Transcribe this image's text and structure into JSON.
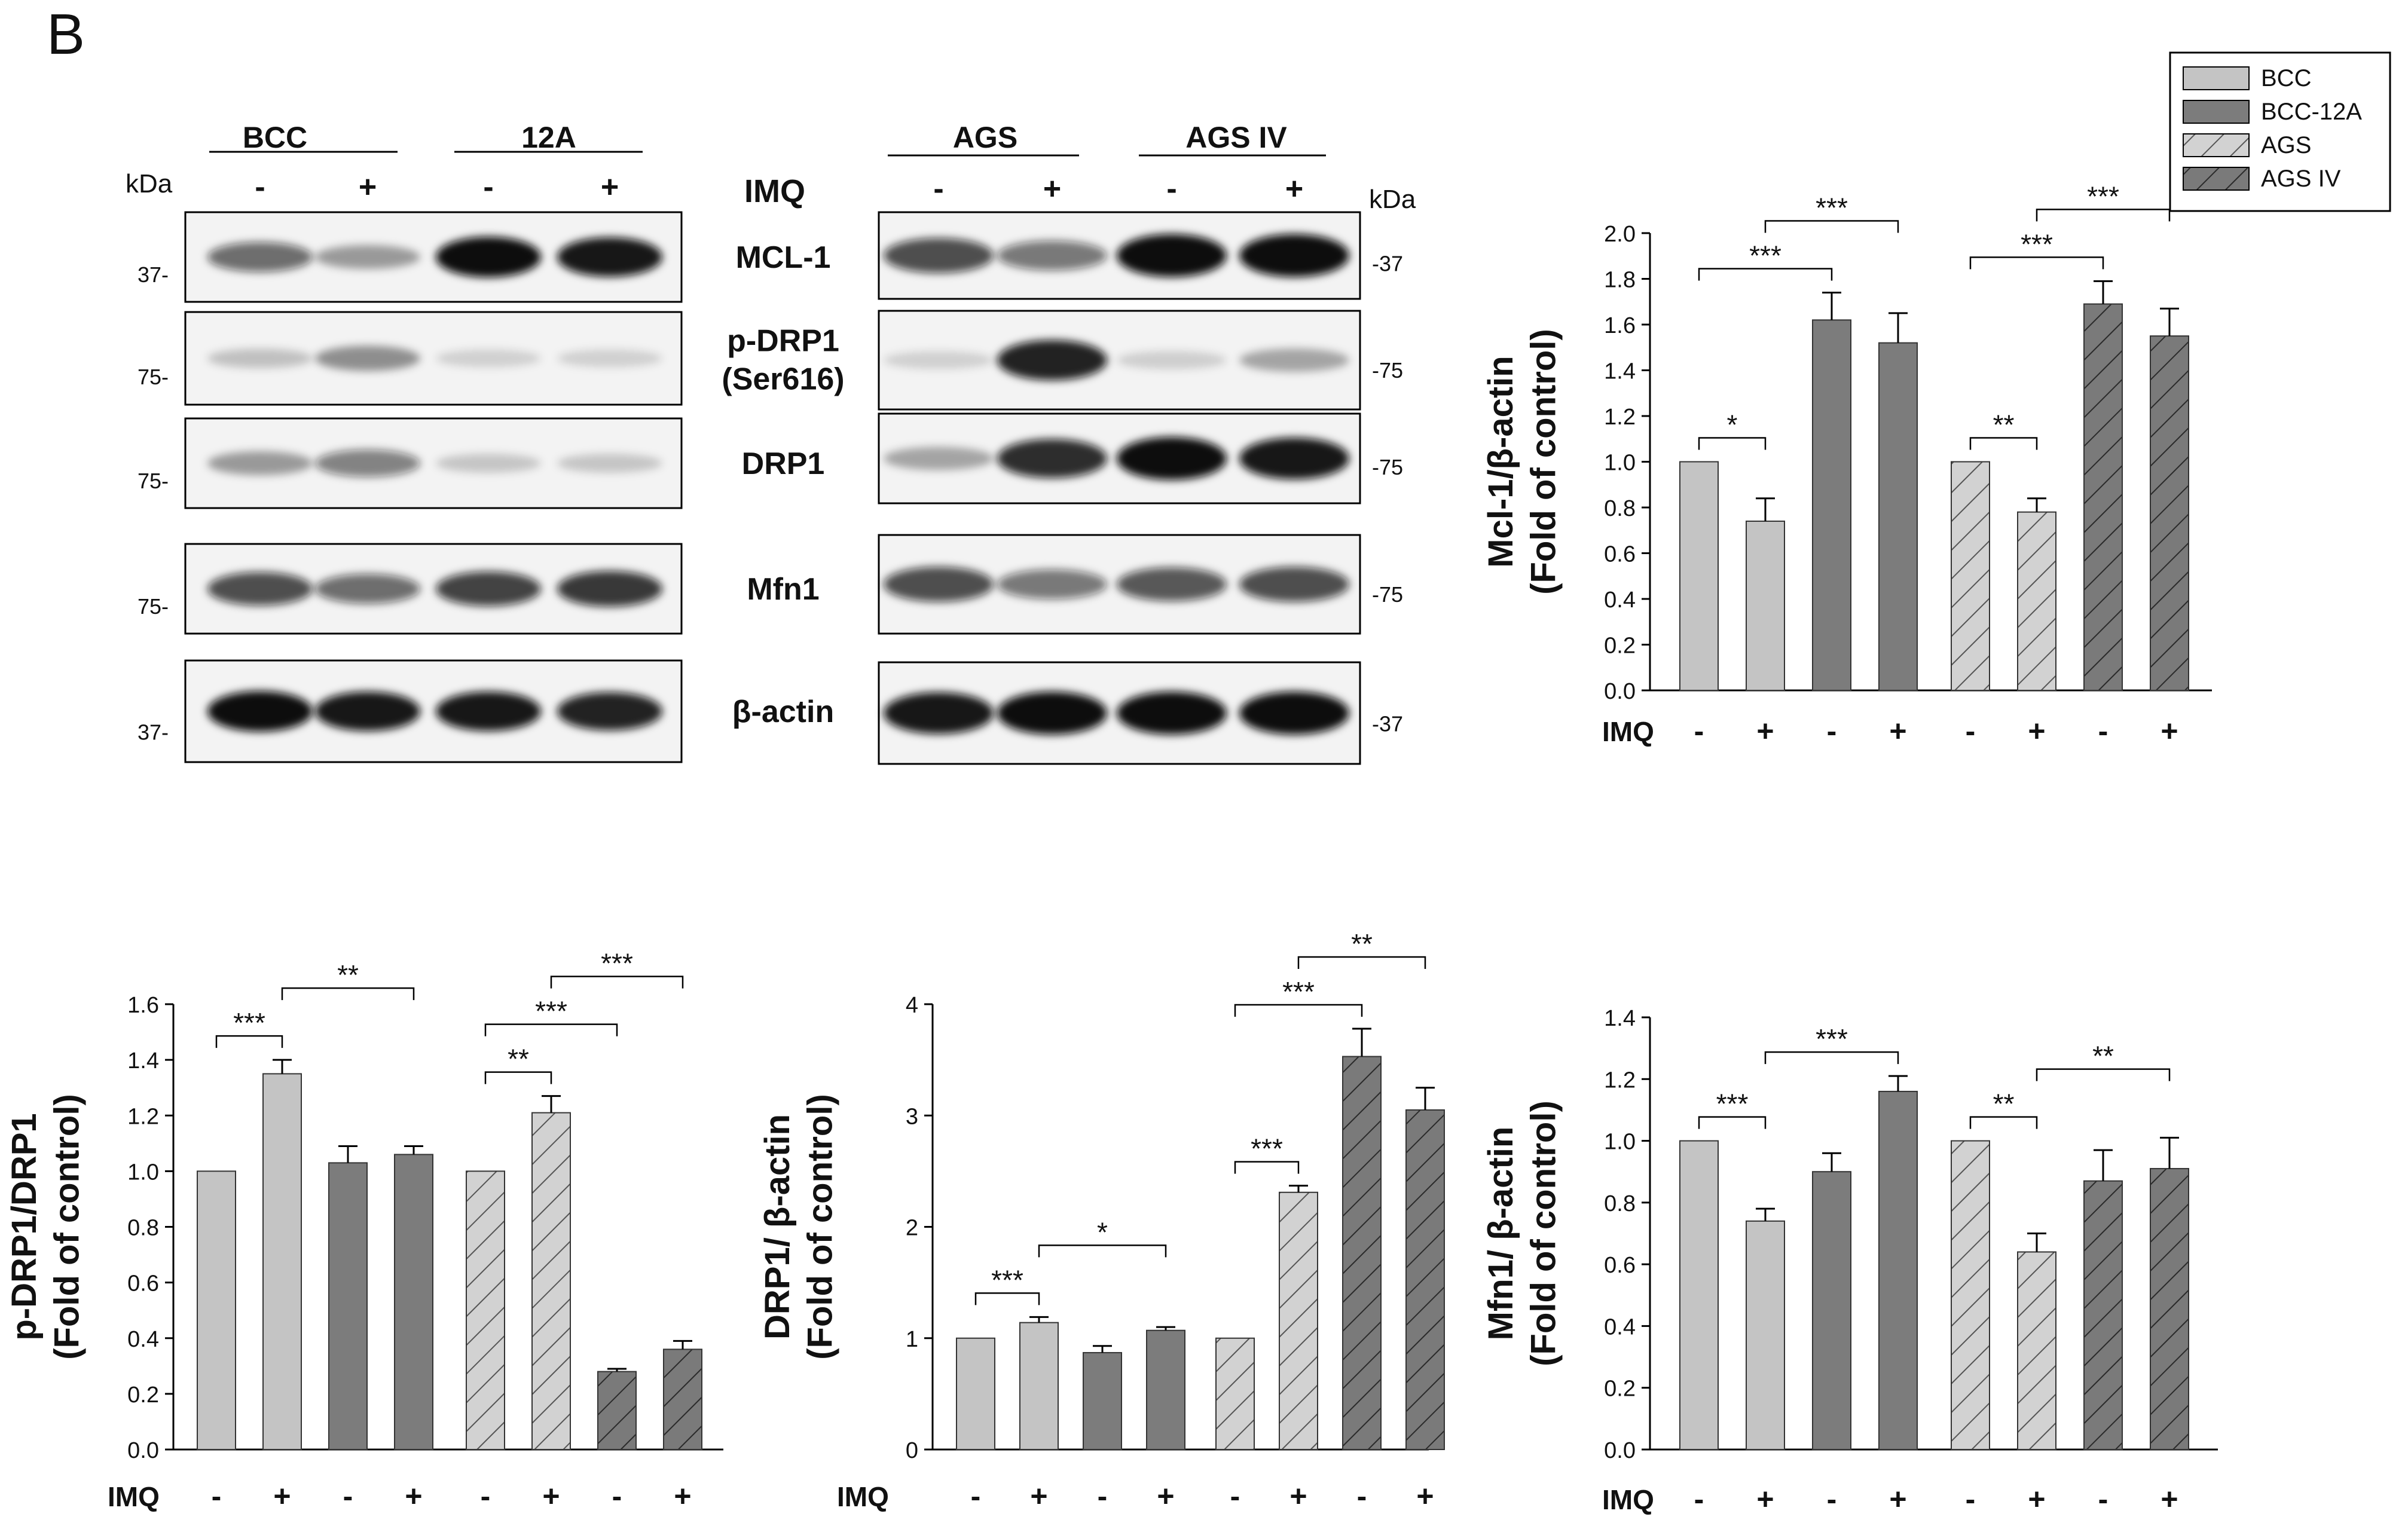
{
  "panel_label": "B",
  "colors": {
    "bcc": "#c4c4c4",
    "bcc12a": "#7c7c7c",
    "ags": "#d0d0d0",
    "agsiv": "#7c7c7c",
    "hatch": "#3a3a3a",
    "band": "#0d0d0d",
    "blot_bg": "#f3f3f3",
    "axis": "#000000"
  },
  "western": {
    "kda": "kDa",
    "imq": "IMQ",
    "signs": [
      "-",
      "+",
      "-",
      "+"
    ],
    "left_groups": [
      "BCC",
      "12A"
    ],
    "right_groups": [
      "AGS",
      "AGS IV"
    ],
    "proteins": [
      {
        "label": "MCL-1",
        "left_kda": "37-",
        "right_kda": "-37",
        "left_bands": [
          0.55,
          0.3,
          1.0,
          0.95
        ],
        "right_bands": [
          0.7,
          0.5,
          1.0,
          1.0
        ]
      },
      {
        "label": "p-DRP1",
        "label2": "(Ser616)",
        "left_kda": "75-",
        "right_kda": "-75",
        "left_bands": [
          0.12,
          0.35,
          0.05,
          0.05
        ],
        "right_bands": [
          0.05,
          0.9,
          0.06,
          0.25
        ]
      },
      {
        "label": "DRP1",
        "left_kda": "75-",
        "right_kda": "-75",
        "left_bands": [
          0.3,
          0.45,
          0.1,
          0.1
        ],
        "right_bands": [
          0.25,
          0.85,
          1.0,
          0.95
        ]
      },
      {
        "label": "Mfn1",
        "left_kda": "75-",
        "right_kda": "-75",
        "left_bands": [
          0.7,
          0.55,
          0.75,
          0.8
        ],
        "right_bands": [
          0.7,
          0.5,
          0.65,
          0.7
        ]
      },
      {
        "label": "β-actin",
        "left_kda": "37-",
        "right_kda": "-37",
        "left_bands": [
          1.0,
          0.95,
          0.95,
          0.9
        ],
        "right_bands": [
          0.95,
          1.0,
          1.0,
          1.0
        ]
      }
    ]
  },
  "legend": [
    {
      "label": "BCC",
      "style": "bcc"
    },
    {
      "label": "BCC-12A",
      "style": "bcc12a"
    },
    {
      "label": "AGS",
      "style": "ags"
    },
    {
      "label": "AGS IV",
      "style": "agsiv"
    }
  ],
  "chart_data": [
    {
      "type": "bar",
      "ylabel": "Mcl-1/β-actin",
      "ylabel2": "(Fold of control)",
      "xlabel_left": "IMQ",
      "categories": [
        "-",
        "+",
        "-",
        "+",
        "-",
        "+",
        "-",
        "+"
      ],
      "values": [
        1.0,
        0.74,
        1.62,
        1.52,
        1.0,
        0.78,
        1.69,
        1.55
      ],
      "errors": [
        0,
        0.1,
        0.12,
        0.13,
        0,
        0.06,
        0.1,
        0.12
      ],
      "styles": [
        "bcc",
        "bcc",
        "bcc12a",
        "bcc12a",
        "ags",
        "ags",
        "agsiv",
        "agsiv"
      ],
      "ylim": [
        0,
        2.0
      ],
      "yticks": [
        "0.0",
        "0.2",
        "0.4",
        "0.6",
        "0.8",
        "1.0",
        "1.2",
        "1.4",
        "1.6",
        "1.8",
        "2.0"
      ],
      "significance": [
        {
          "from": 0,
          "to": 1,
          "label": "*"
        },
        {
          "from": 0,
          "to": 2,
          "label": "***"
        },
        {
          "from": 1,
          "to": 3,
          "label": "***"
        },
        {
          "from": 4,
          "to": 5,
          "label": "**"
        },
        {
          "from": 4,
          "to": 6,
          "label": "***"
        },
        {
          "from": 5,
          "to": 7,
          "label": "***"
        }
      ]
    },
    {
      "type": "bar",
      "ylabel": "p-DRP1/DRP1",
      "ylabel2": "(Fold of control)",
      "xlabel_left": "IMQ",
      "categories": [
        "-",
        "+",
        "-",
        "+",
        "-",
        "+",
        "-",
        "+"
      ],
      "values": [
        1.0,
        1.35,
        1.03,
        1.06,
        1.0,
        1.21,
        0.28,
        0.36
      ],
      "errors": [
        0,
        0.05,
        0.06,
        0.03,
        0,
        0.06,
        0.01,
        0.03
      ],
      "styles": [
        "bcc",
        "bcc",
        "bcc12a",
        "bcc12a",
        "ags",
        "ags",
        "agsiv",
        "agsiv"
      ],
      "ylim": [
        0,
        1.6
      ],
      "yticks": [
        "0.0",
        "0.2",
        "0.4",
        "0.6",
        "0.8",
        "1.0",
        "1.2",
        "1.4",
        "1.6"
      ],
      "significance": [
        {
          "from": 0,
          "to": 1,
          "label": "***"
        },
        {
          "from": 1,
          "to": 3,
          "label": "**"
        },
        {
          "from": 4,
          "to": 5,
          "label": "**"
        },
        {
          "from": 4,
          "to": 6,
          "label": "***"
        },
        {
          "from": 5,
          "to": 7,
          "label": "***"
        }
      ]
    },
    {
      "type": "bar",
      "ylabel": "DRP1/ β-actin",
      "ylabel2": "(Fold of control)",
      "xlabel_left": "IMQ",
      "categories": [
        "-",
        "+",
        "-",
        "+",
        "-",
        "+",
        "-",
        "+"
      ],
      "values": [
        1.0,
        1.14,
        0.87,
        1.07,
        1.0,
        2.31,
        3.53,
        3.05
      ],
      "errors": [
        0,
        0.05,
        0.06,
        0.03,
        0,
        0.06,
        0.25,
        0.2
      ],
      "styles": [
        "bcc",
        "bcc",
        "bcc12a",
        "bcc12a",
        "ags",
        "ags",
        "agsiv",
        "agsiv"
      ],
      "ylim": [
        0,
        4
      ],
      "yticks": [
        "0",
        "1",
        "2",
        "3",
        "4"
      ],
      "significance": [
        {
          "from": 0,
          "to": 1,
          "label": "***"
        },
        {
          "from": 1,
          "to": 3,
          "label": "*"
        },
        {
          "from": 4,
          "to": 5,
          "label": "***"
        },
        {
          "from": 4,
          "to": 6,
          "label": "***"
        },
        {
          "from": 5,
          "to": 7,
          "label": "**"
        }
      ]
    },
    {
      "type": "bar",
      "ylabel": "Mfn1/ β-actin",
      "ylabel2": "(Fold of control)",
      "xlabel_left": "IMQ",
      "categories": [
        "-",
        "+",
        "-",
        "+",
        "-",
        "+",
        "-",
        "+"
      ],
      "values": [
        1.0,
        0.74,
        0.9,
        1.16,
        1.0,
        0.64,
        0.87,
        0.91
      ],
      "errors": [
        0,
        0.04,
        0.06,
        0.05,
        0,
        0.06,
        0.1,
        0.1
      ],
      "styles": [
        "bcc",
        "bcc",
        "bcc12a",
        "bcc12a",
        "ags",
        "ags",
        "agsiv",
        "agsiv"
      ],
      "ylim": [
        0,
        1.4
      ],
      "yticks": [
        "0.0",
        "0.2",
        "0.4",
        "0.6",
        "0.8",
        "1.0",
        "1.2",
        "1.4"
      ],
      "significance": [
        {
          "from": 0,
          "to": 1,
          "label": "***"
        },
        {
          "from": 1,
          "to": 3,
          "label": "***"
        },
        {
          "from": 4,
          "to": 5,
          "label": "**"
        },
        {
          "from": 5,
          "to": 7,
          "label": "**"
        }
      ]
    }
  ]
}
